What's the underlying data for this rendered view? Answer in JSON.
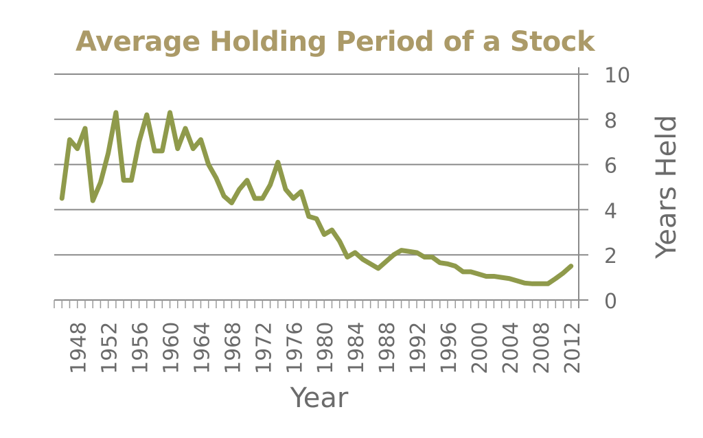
{
  "title": "Average Holding Period of a Stock",
  "colors": {
    "title": "#ab9a68",
    "line": "#8f9a4b",
    "grid": "#8a8a8a",
    "text": "#6b6b6b"
  },
  "chart_data": {
    "type": "line",
    "title": "Average Holding Period of a Stock",
    "xlabel": "Year",
    "ylabel": "Years Held",
    "ylim": [
      0,
      10
    ],
    "yticks": [
      0,
      2,
      4,
      6,
      8,
      10
    ],
    "xtick_labels": [
      "1948",
      "1952",
      "1956",
      "1960",
      "1964",
      "1968",
      "1972",
      "1976",
      "1980",
      "1984",
      "1988",
      "1992",
      "1996",
      "2000",
      "2004",
      "2008",
      "2012"
    ],
    "grid": true,
    "y_axis_position": "right",
    "legend": null,
    "x": [
      1946,
      1947,
      1948,
      1949,
      1950,
      1951,
      1952,
      1953,
      1954,
      1955,
      1956,
      1957,
      1958,
      1959,
      1960,
      1961,
      1962,
      1963,
      1964,
      1965,
      1966,
      1967,
      1968,
      1969,
      1970,
      1971,
      1972,
      1973,
      1974,
      1975,
      1976,
      1977,
      1978,
      1979,
      1980,
      1981,
      1982,
      1983,
      1984,
      1985,
      1986,
      1987,
      1988,
      1989,
      1990,
      1991,
      1992,
      1993,
      1994,
      1995,
      1996,
      1997,
      1998,
      1999,
      2000,
      2001,
      2002,
      2003,
      2004,
      2005,
      2006,
      2007,
      2008,
      2009,
      2010,
      2011,
      2012
    ],
    "series": [
      {
        "name": "Years Held",
        "values": [
          4.5,
          7.1,
          6.7,
          7.6,
          4.4,
          5.2,
          6.5,
          8.3,
          5.3,
          5.3,
          7.0,
          8.2,
          6.6,
          6.6,
          8.3,
          6.7,
          7.6,
          6.7,
          7.1,
          6.0,
          5.4,
          4.6,
          4.3,
          4.9,
          5.3,
          4.5,
          4.5,
          5.1,
          6.1,
          4.9,
          4.5,
          4.8,
          3.7,
          3.6,
          2.9,
          3.1,
          2.6,
          1.9,
          2.1,
          1.8,
          1.6,
          1.4,
          1.7,
          2.0,
          2.2,
          2.15,
          2.1,
          1.9,
          1.9,
          1.65,
          1.6,
          1.5,
          1.25,
          1.25,
          1.15,
          1.05,
          1.05,
          1.0,
          0.95,
          0.85,
          0.75,
          0.72,
          0.72,
          0.72,
          0.95,
          1.2,
          1.5
        ]
      }
    ]
  }
}
